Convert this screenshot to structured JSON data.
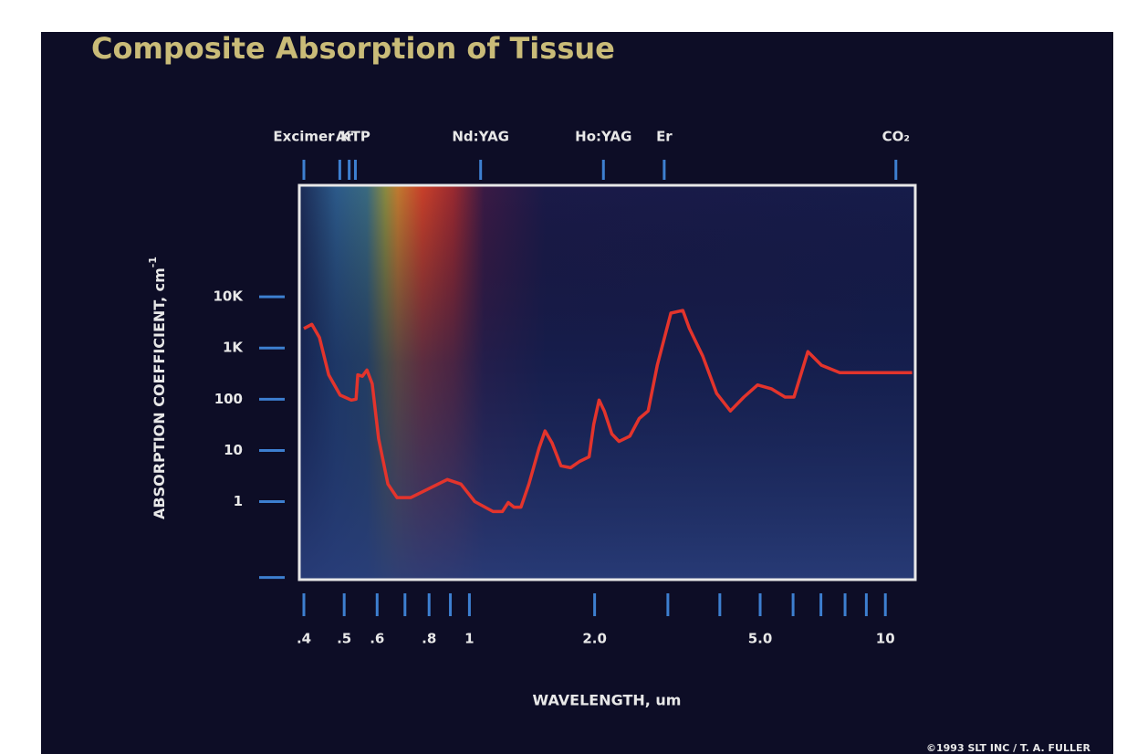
{
  "chart_data": {
    "type": "line",
    "title": "Composite Absorption of Tissue",
    "y_label": "ABSORPTION COEFFICIENT, cm",
    "y_label_exponent": "-1",
    "x_label": "WAVELENGTH, um",
    "credit": "©1993 SLT INC / T. A. FULLER",
    "log_x": true,
    "log_y": true,
    "color": "#e3342c",
    "xlim": [
      0.39,
      11.8
    ],
    "ylim": [
      0.03,
      1500000
    ],
    "xticks": [
      {
        "value": 0.4,
        "label": ".4"
      },
      {
        "value": 0.5,
        "label": ".5"
      },
      {
        "value": 0.6,
        "label": ".6"
      },
      {
        "value": 0.8,
        "label": ".8"
      },
      1,
      {
        "value": 2,
        "label": "2.0"
      },
      {
        "value": 5,
        "label": "5.0"
      },
      10
    ],
    "xminor_ticks": [
      0.7,
      0.9,
      3,
      4,
      6,
      7,
      8,
      9
    ],
    "yticks": [
      1,
      10,
      100,
      {
        "value": 1000,
        "label": "1K"
      },
      {
        "value": 10000,
        "label": "10K"
      }
    ],
    "yminor_ticks": [
      0.033
    ],
    "top_markers": [
      {
        "label": "Excimer",
        "x": [
          0.4
        ]
      },
      {
        "label": "Ar",
        "x": [
          0.488,
          0.514
        ]
      },
      {
        "label": "KTP",
        "x": [
          0.532
        ]
      },
      {
        "label": "Nd:YAG",
        "x": [
          1.064
        ]
      },
      {
        "label": "Ho:YAG",
        "x": [
          2.1
        ]
      },
      {
        "label": "Er",
        "x": [
          2.94
        ]
      },
      {
        "label": "CO₂",
        "x": [
          10.6
        ]
      }
    ],
    "x": [
      0.4,
      0.418,
      0.436,
      0.459,
      0.489,
      0.52,
      0.534,
      0.539,
      0.553,
      0.567,
      0.584,
      0.605,
      0.637,
      0.67,
      0.723,
      0.8,
      0.885,
      0.954,
      1.03,
      1.14,
      1.2,
      1.24,
      1.28,
      1.33,
      1.39,
      1.47,
      1.52,
      1.58,
      1.66,
      1.75,
      1.84,
      1.94,
      1.99,
      2.05,
      2.11,
      2.2,
      2.29,
      2.43,
      2.56,
      2.69,
      2.83,
      3.05,
      3.26,
      3.38,
      3.64,
      3.93,
      4.24,
      4.57,
      4.93,
      5.32,
      5.74,
      6.03,
      6.51,
      7.02,
      7.77,
      9.51,
      11.6
    ],
    "values": [
      2400,
      2900,
      1600,
      300,
      120,
      96,
      100,
      300,
      280,
      370,
      200,
      17,
      2.2,
      1.2,
      1.2,
      1.8,
      2.7,
      2.2,
      1.0,
      0.64,
      0.64,
      0.96,
      0.78,
      0.78,
      2.2,
      11,
      24,
      14,
      5.0,
      4.6,
      6.1,
      7.5,
      32,
      96,
      59,
      21,
      15,
      19,
      42,
      59,
      460,
      4800,
      5400,
      2400,
      690,
      130,
      59,
      110,
      190,
      160,
      110,
      110,
      850,
      460,
      330,
      330,
      330
    ]
  }
}
